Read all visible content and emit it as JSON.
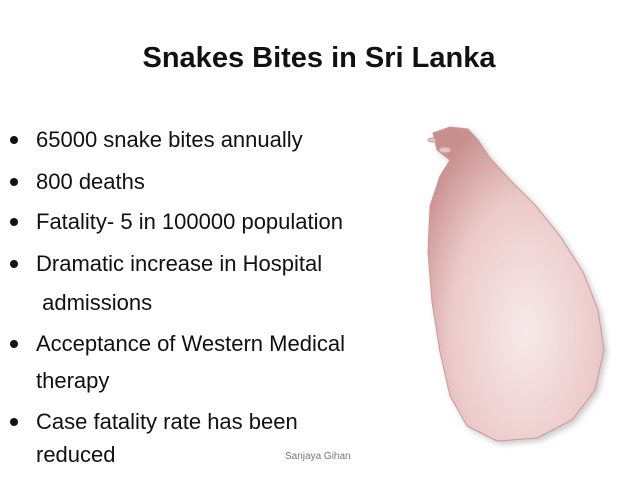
{
  "title": "Snakes Bites in Sri Lanka",
  "bullets": [
    {
      "lines": [
        "65000 snake bites annually"
      ]
    },
    {
      "lines": [
        "800 deaths"
      ]
    },
    {
      "lines": [
        "Fatality- 5 in 100000 population"
      ]
    },
    {
      "lines": [
        "Dramatic increase in Hospital",
        " admissions"
      ]
    },
    {
      "lines": [
        "Acceptance of Western Medical",
        "therapy"
      ]
    },
    {
      "lines": [
        "Case fatality rate has been",
        "reduced"
      ]
    }
  ],
  "footer": "Sanjaya Gihan"
}
